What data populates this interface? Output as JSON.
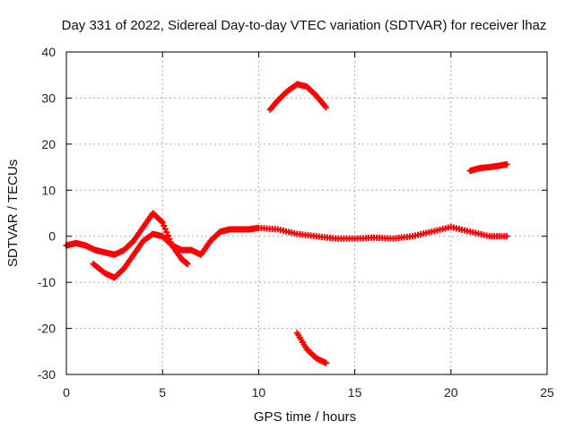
{
  "chart_data": {
    "type": "scatter",
    "title": "Day 331 of 2022, Sidereal Day-to-day VTEC variation (SDTVAR) for receiver lhaz",
    "xlabel": "GPS time / hours",
    "ylabel": "SDTVAR / TECUs",
    "xlim": [
      0,
      25
    ],
    "ylim": [
      -30,
      40
    ],
    "xticks": [
      0,
      5,
      10,
      15,
      20,
      25
    ],
    "yticks": [
      -30,
      -20,
      -10,
      0,
      10,
      20,
      30,
      40
    ],
    "grid": true,
    "marker": "+",
    "color": "#ff0000",
    "series": [
      {
        "name": "track-1",
        "x": [
          0.0,
          0.5,
          1.0,
          1.5,
          2.0,
          2.5,
          3.0,
          3.5,
          4.0,
          4.5,
          5.0,
          5.5,
          6.0,
          6.5,
          7.0,
          7.5,
          8.0,
          8.5,
          9.0,
          9.5,
          10.0,
          11.0,
          12.0,
          13.0,
          14.0,
          15.0,
          16.0,
          17.0,
          18.0,
          19.0,
          20.0,
          21.0,
          22.0,
          22.9
        ],
        "y": [
          -2,
          -1.5,
          -2,
          -3,
          -3.5,
          -4,
          -3,
          -1,
          2,
          5,
          3,
          -2,
          -3,
          -3,
          -4,
          -1,
          1,
          1.5,
          1.5,
          1.5,
          1.8,
          1.5,
          0.5,
          0,
          -0.5,
          -0.5,
          -0.3,
          -0.5,
          0,
          1,
          2,
          1,
          0,
          0
        ]
      },
      {
        "name": "track-2",
        "x": [
          1.4,
          2.0,
          2.5,
          3.0,
          3.5,
          4.0,
          4.5,
          5.0,
          5.5,
          6.0,
          6.3
        ],
        "y": [
          -6,
          -8,
          -9,
          -7,
          -4,
          -1,
          0.5,
          0,
          -2,
          -5,
          -6
        ]
      },
      {
        "name": "track-3",
        "x": [
          10.6,
          11.0,
          11.5,
          12.0,
          12.5,
          13.0,
          13.5
        ],
        "y": [
          27.5,
          29.5,
          31.5,
          33,
          32.5,
          30.5,
          28
        ]
      },
      {
        "name": "track-4",
        "x": [
          12.0,
          12.5,
          13.0,
          13.5
        ],
        "y": [
          -21,
          -24.5,
          -26.5,
          -27.5
        ]
      },
      {
        "name": "track-5",
        "x": [
          21.0,
          21.5,
          22.0,
          22.5,
          22.9
        ],
        "y": [
          14.2,
          14.8,
          15.0,
          15.3,
          15.6
        ]
      }
    ]
  }
}
